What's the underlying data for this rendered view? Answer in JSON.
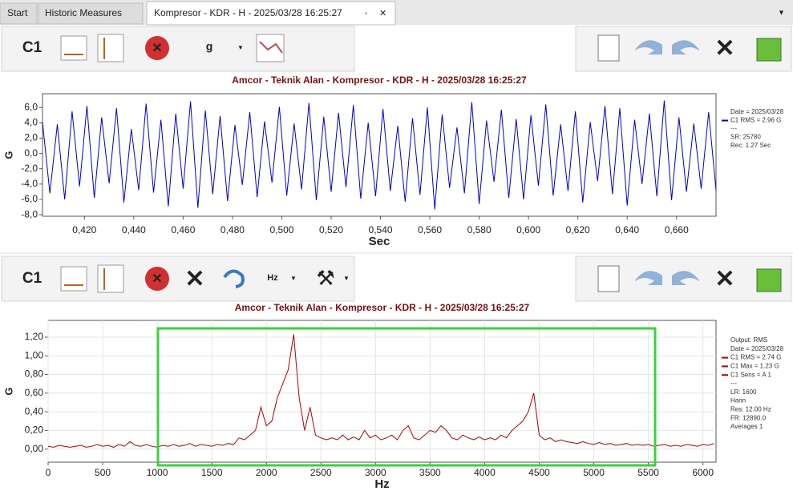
{
  "tabs": [
    "Start",
    "Historic Measures",
    "Kompresor - KDR - H - 2025/03/28 16:25:27"
  ],
  "toolbars": [
    {
      "channel": "C1",
      "unit": "g"
    },
    {
      "channel": "C1",
      "unit": "Hz"
    }
  ],
  "chart_data": [
    {
      "type": "line",
      "title": "Amcor - Teknik Alan - Kompresor - KDR - H - 2025/03/28 16:25:27",
      "xlabel": "Sec",
      "ylabel": "G",
      "x": [
        0.403,
        0.406,
        0.409,
        0.412,
        0.415,
        0.418,
        0.421,
        0.424,
        0.427,
        0.43,
        0.433,
        0.436,
        0.439,
        0.442,
        0.445,
        0.448,
        0.451,
        0.454,
        0.457,
        0.46,
        0.463,
        0.466,
        0.469,
        0.472,
        0.475,
        0.478,
        0.481,
        0.484,
        0.487,
        0.49,
        0.493,
        0.496,
        0.499,
        0.502,
        0.505,
        0.508,
        0.511,
        0.514,
        0.517,
        0.52,
        0.523,
        0.526,
        0.529,
        0.532,
        0.535,
        0.538,
        0.541,
        0.544,
        0.547,
        0.55,
        0.553,
        0.556,
        0.559,
        0.562,
        0.565,
        0.568,
        0.571,
        0.574,
        0.577,
        0.58,
        0.583,
        0.586,
        0.589,
        0.592,
        0.595,
        0.598,
        0.601,
        0.604,
        0.607,
        0.61,
        0.613,
        0.616,
        0.619,
        0.622,
        0.625,
        0.628,
        0.631,
        0.634,
        0.637,
        0.64,
        0.643,
        0.646,
        0.649,
        0.652,
        0.655,
        0.658,
        0.661,
        0.664,
        0.667,
        0.67,
        0.673,
        0.676
      ],
      "series": [
        {
          "color": "#0000cc",
          "values": [
            4.1,
            -5.2,
            3.8,
            -6.0,
            5.5,
            -4.3,
            6.2,
            -5.8,
            4.7,
            -3.9,
            5.9,
            -6.4,
            3.2,
            -4.8,
            6.5,
            -5.1,
            4.4,
            -6.9,
            5.2,
            -4.6,
            6.8,
            -7.1,
            5.6,
            -5.3,
            4.9,
            -6.2,
            3.7,
            -4.1,
            5.4,
            -5.7,
            4.2,
            -3.8,
            6.1,
            -5.5,
            3.9,
            -4.7,
            6.6,
            -6.1,
            4.8,
            -5.0,
            5.3,
            -4.4,
            6.3,
            -5.9,
            4.0,
            -5.6,
            5.8,
            -4.9,
            3.6,
            -6.3,
            4.6,
            -5.4,
            6.0,
            -7.3,
            5.1,
            -4.5,
            3.4,
            -5.2,
            6.7,
            -6.6,
            4.3,
            -3.7,
            5.7,
            -5.8,
            4.5,
            -6.0,
            5.0,
            -4.2,
            6.4,
            -5.5,
            3.8,
            -4.9,
            5.5,
            -6.4,
            4.1,
            -3.6,
            6.2,
            -5.3,
            5.9,
            -6.8,
            4.4,
            -4.0,
            5.2,
            -5.6,
            6.9,
            -6.1,
            4.7,
            -5.0,
            3.9,
            -4.6,
            5.4,
            -4.8
          ]
        }
      ],
      "xlim": [
        0.403,
        0.676
      ],
      "ylim": [
        -8.2,
        7.8
      ],
      "xticks": [
        {
          "value": 0.42,
          "label": "0,420"
        },
        {
          "value": 0.44,
          "label": "0,440"
        },
        {
          "value": 0.46,
          "label": "0,460"
        },
        {
          "value": 0.48,
          "label": "0,480"
        },
        {
          "value": 0.5,
          "label": "0,500"
        },
        {
          "value": 0.52,
          "label": "0,520"
        },
        {
          "value": 0.54,
          "label": "0,540"
        },
        {
          "value": 0.56,
          "label": "0,560"
        },
        {
          "value": 0.58,
          "label": "0,580"
        },
        {
          "value": 0.6,
          "label": "0,600"
        },
        {
          "value": 0.62,
          "label": "0,620"
        },
        {
          "value": 0.64,
          "label": "0,640"
        },
        {
          "value": 0.66,
          "label": "0,660"
        }
      ],
      "yticks": [
        {
          "value": 6,
          "label": "6,0"
        },
        {
          "value": 4,
          "label": "4,0"
        },
        {
          "value": 2,
          "label": "2,0"
        },
        {
          "value": 0,
          "label": "0,0"
        },
        {
          "value": -2,
          "label": "-2,0"
        },
        {
          "value": -4,
          "label": "-4,0"
        },
        {
          "value": -6,
          "label": "-6,0"
        },
        {
          "value": -8,
          "label": "-8,0"
        }
      ],
      "grid": false,
      "legend_text": [
        "Date = 2025/03/28",
        "C1 RMS = 2.96 G",
        "---",
        "SR: 25780",
        "Rec: 1.27 Sec"
      ]
    },
    {
      "type": "line",
      "title": "Amcor - Teknik Alan - Kompresor - KDR - H - 2025/03/28 16:25:27",
      "xlabel": "Hz",
      "ylabel": "G",
      "x": [
        0,
        50,
        100,
        150,
        200,
        250,
        300,
        350,
        400,
        450,
        500,
        550,
        600,
        650,
        700,
        750,
        800,
        850,
        900,
        950,
        1000,
        1050,
        1100,
        1150,
        1200,
        1250,
        1300,
        1350,
        1400,
        1450,
        1500,
        1550,
        1600,
        1650,
        1700,
        1750,
        1800,
        1850,
        1900,
        1950,
        2000,
        2050,
        2100,
        2150,
        2200,
        2250,
        2300,
        2350,
        2400,
        2450,
        2500,
        2550,
        2600,
        2650,
        2700,
        2750,
        2800,
        2850,
        2900,
        2950,
        3000,
        3050,
        3100,
        3150,
        3200,
        3250,
        3300,
        3350,
        3400,
        3450,
        3500,
        3550,
        3600,
        3650,
        3700,
        3750,
        3800,
        3850,
        3900,
        3950,
        4000,
        4050,
        4100,
        4150,
        4200,
        4250,
        4300,
        4350,
        4400,
        4450,
        4500,
        4550,
        4600,
        4650,
        4700,
        4750,
        4800,
        4850,
        4900,
        4950,
        5000,
        5050,
        5100,
        5150,
        5200,
        5250,
        5300,
        5350,
        5400,
        5450,
        5500,
        5550,
        5600,
        5650,
        5700,
        5750,
        5800,
        5850,
        5900,
        5950,
        6000,
        6050,
        6100
      ],
      "series": [
        {
          "color": "#b00000",
          "values": [
            0.03,
            0.02,
            0.04,
            0.03,
            0.02,
            0.03,
            0.04,
            0.02,
            0.03,
            0.05,
            0.03,
            0.04,
            0.02,
            0.05,
            0.03,
            0.08,
            0.04,
            0.03,
            0.05,
            0.03,
            0.02,
            0.04,
            0.03,
            0.05,
            0.03,
            0.04,
            0.06,
            0.03,
            0.05,
            0.04,
            0.03,
            0.05,
            0.04,
            0.06,
            0.05,
            0.12,
            0.1,
            0.15,
            0.2,
            0.45,
            0.25,
            0.3,
            0.55,
            0.7,
            0.85,
            1.23,
            0.55,
            0.2,
            0.45,
            0.15,
            0.12,
            0.1,
            0.12,
            0.1,
            0.15,
            0.1,
            0.13,
            0.1,
            0.2,
            0.12,
            0.15,
            0.1,
            0.12,
            0.15,
            0.1,
            0.2,
            0.25,
            0.12,
            0.1,
            0.15,
            0.2,
            0.18,
            0.25,
            0.2,
            0.12,
            0.1,
            0.15,
            0.12,
            0.1,
            0.13,
            0.1,
            0.12,
            0.1,
            0.15,
            0.12,
            0.2,
            0.25,
            0.3,
            0.4,
            0.6,
            0.15,
            0.1,
            0.12,
            0.08,
            0.1,
            0.08,
            0.07,
            0.06,
            0.08,
            0.06,
            0.05,
            0.07,
            0.05,
            0.06,
            0.04,
            0.05,
            0.06,
            0.04,
            0.05,
            0.04,
            0.05,
            0.03,
            0.04,
            0.05,
            0.03,
            0.04,
            0.03,
            0.05,
            0.04,
            0.03,
            0.05,
            0.04,
            0.06
          ]
        }
      ],
      "xlim": [
        0,
        6120
      ],
      "ylim": [
        -0.14,
        1.38
      ],
      "xticks": [
        0,
        500,
        1000,
        1500,
        2000,
        2500,
        3000,
        3500,
        4000,
        4500,
        5000,
        5500,
        6000
      ],
      "yticks": [
        {
          "value": 0,
          "label": "0,00"
        },
        {
          "value": 0.2,
          "label": "0,20"
        },
        {
          "value": 0.4,
          "label": "0,40"
        },
        {
          "value": 0.6,
          "label": "0,60"
        },
        {
          "value": 0.8,
          "label": "0,80"
        },
        {
          "value": 1,
          "label": "1,00"
        },
        {
          "value": 1.2,
          "label": "1,20"
        }
      ],
      "grid": true,
      "legend_text": [
        "Output: RMS",
        "Date = 2025/03/28",
        "C1 RMS = 2.74 G",
        "C1 Max = 1.23 G",
        "C1 Sens = A 1",
        "---",
        "LR: 1600",
        "Hann",
        "Res: 12.00 Hz",
        "FR: 12890.0",
        "Averages 1"
      ]
    }
  ]
}
